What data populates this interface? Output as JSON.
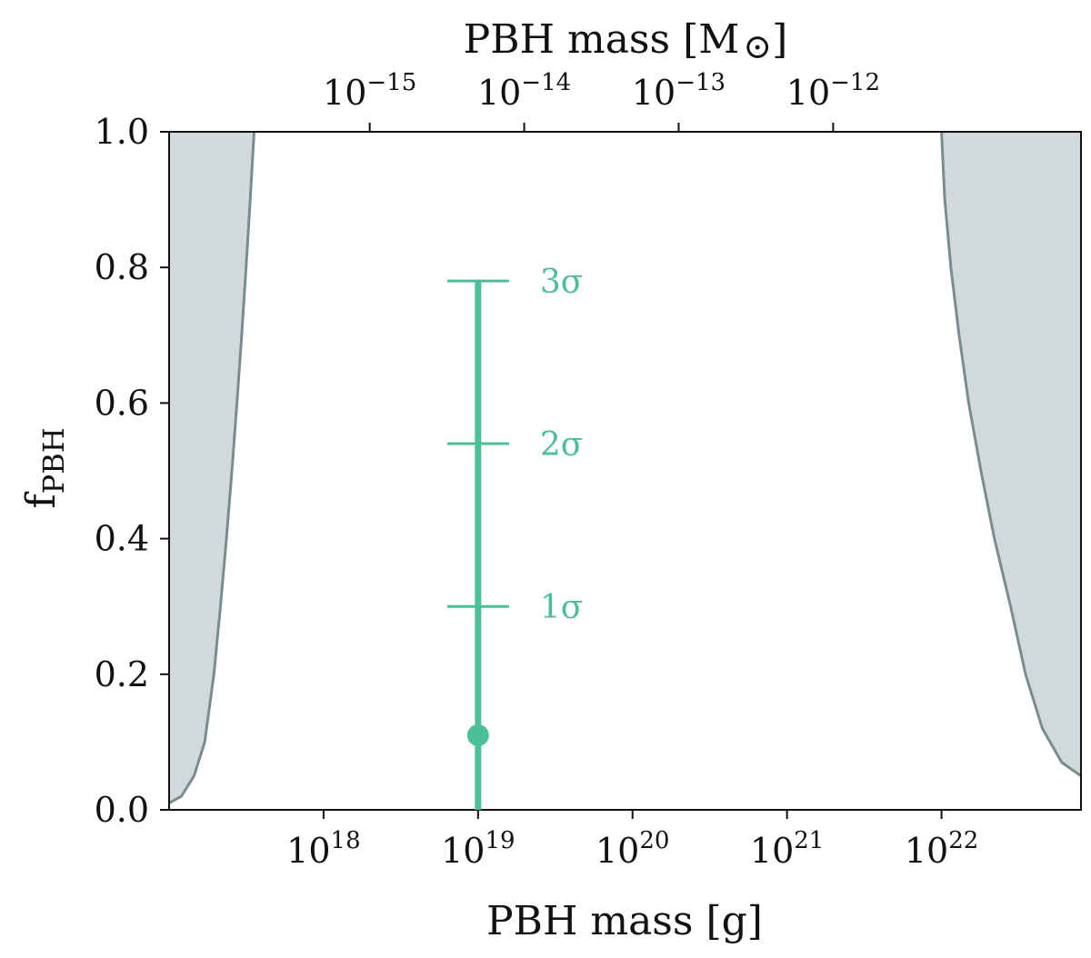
{
  "colors": {
    "excluded_fill": "#d1d9dc",
    "excluded_edge": "#7a8d8e",
    "accent": "#4cbf96",
    "axis": "#111111"
  },
  "chart_data": {
    "type": "line",
    "xscale": "log",
    "xlim": [
      1e+17,
      8e+22
    ],
    "ylim": [
      0.0,
      1.0
    ],
    "xlabel": "PBH mass [g]",
    "ylabel_main": "f",
    "ylabel_sub": "PBH",
    "x2label": "PBH mass [M",
    "x2label_symbol": "⊙",
    "x2label_close": "]",
    "x_ticks": [
      {
        "base": "10",
        "exp": "18",
        "value": 1e+18
      },
      {
        "base": "10",
        "exp": "19",
        "value": 1e+19
      },
      {
        "base": "10",
        "exp": "20",
        "value": 1e+20
      },
      {
        "base": "10",
        "exp": "21",
        "value": 1e+21
      },
      {
        "base": "10",
        "exp": "22",
        "value": 1e+22
      }
    ],
    "x2_ticks": [
      {
        "base": "10",
        "exp": "−15",
        "value_msun": 1e-15
      },
      {
        "base": "10",
        "exp": "−14",
        "value_msun": 1e-14
      },
      {
        "base": "10",
        "exp": "−13",
        "value_msun": 1e-13
      },
      {
        "base": "10",
        "exp": "−12",
        "value_msun": 1e-12
      }
    ],
    "msun_in_g": 1.989e+33,
    "y_ticks": [
      "0.0",
      "0.2",
      "0.4",
      "0.6",
      "0.8",
      "1.0"
    ],
    "excluded_regions": [
      {
        "side": "low-mass",
        "boundary": [
          [
            1e+17,
            0.01
          ],
          [
            1.2e+17,
            0.02
          ],
          [
            1.45e+17,
            0.05
          ],
          [
            1.7e+17,
            0.1
          ],
          [
            1.95e+17,
            0.2
          ],
          [
            2.15e+17,
            0.3
          ],
          [
            2.35e+17,
            0.4
          ],
          [
            2.55e+17,
            0.5
          ],
          [
            2.75e+17,
            0.6
          ],
          [
            2.95e+17,
            0.7
          ],
          [
            3.15e+17,
            0.8
          ],
          [
            3.35e+17,
            0.9
          ],
          [
            3.55e+17,
            1.0
          ]
        ]
      },
      {
        "side": "high-mass",
        "boundary": [
          [
            1e+22,
            1.0
          ],
          [
            1.05e+22,
            0.9
          ],
          [
            1.15e+22,
            0.8
          ],
          [
            1.3e+22,
            0.7
          ],
          [
            1.5e+22,
            0.6
          ],
          [
            1.8e+22,
            0.5
          ],
          [
            2.2e+22,
            0.4
          ],
          [
            2.8e+22,
            0.3
          ],
          [
            3.5e+22,
            0.2
          ],
          [
            4.5e+22,
            0.12
          ],
          [
            6e+22,
            0.07
          ],
          [
            8e+22,
            0.05
          ]
        ]
      }
    ],
    "point_estimate": {
      "x": 1e+19,
      "y": 0.11
    },
    "interval_line": {
      "x": 1e+19,
      "y_low": 0.0,
      "y_high": 0.78
    },
    "sigma_levels": [
      {
        "label": "1σ",
        "y": 0.3
      },
      {
        "label": "2σ",
        "y": 0.54
      },
      {
        "label": "3σ",
        "y": 0.78
      }
    ]
  }
}
